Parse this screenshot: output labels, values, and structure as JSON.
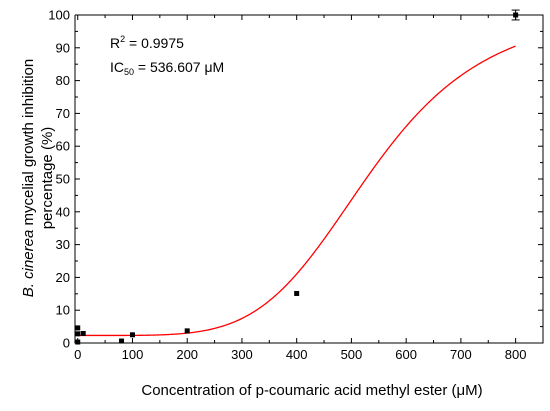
{
  "chart_data": {
    "type": "scatter",
    "xlabel": "Concentration of p-coumaric acid methyl ester (μM)",
    "ylabel": {
      "italic": "B. cinerea",
      "rest_line1": " mycelial growth inhibition",
      "line2": "percentage (%)"
    },
    "xlim": [
      -5,
      850
    ],
    "ylim": [
      0,
      100
    ],
    "xticks": [
      0,
      100,
      200,
      300,
      400,
      500,
      600,
      700,
      800
    ],
    "yticks": [
      0,
      10,
      20,
      30,
      40,
      50,
      60,
      70,
      80,
      90,
      100
    ],
    "grid": false,
    "series": [
      {
        "points": [
          {
            "x": 0,
            "y": 0.3
          },
          {
            "x": 0,
            "y": 2.8
          },
          {
            "x": 0,
            "y": 4.6
          },
          {
            "x": 10,
            "y": 2.9
          },
          {
            "x": 80,
            "y": 0.6
          },
          {
            "x": 100,
            "y": 2.5
          },
          {
            "x": 200,
            "y": 3.7
          },
          {
            "x": 400,
            "y": 15.1
          },
          {
            "x": 800,
            "y": 100,
            "err": 1.5
          }
        ]
      }
    ],
    "fit": {
      "model": "logistic",
      "min": 2.3,
      "max": 102.5,
      "ic50": 536.607,
      "hill": 5.0,
      "color": "#ff0000"
    },
    "annotations": {
      "r2_base": "R",
      "r2_sup": "2",
      "r2_rest": " = 0.9975",
      "ic_base": "IC",
      "ic_sub": "50",
      "ic_rest": " = 536.607 μM"
    }
  }
}
